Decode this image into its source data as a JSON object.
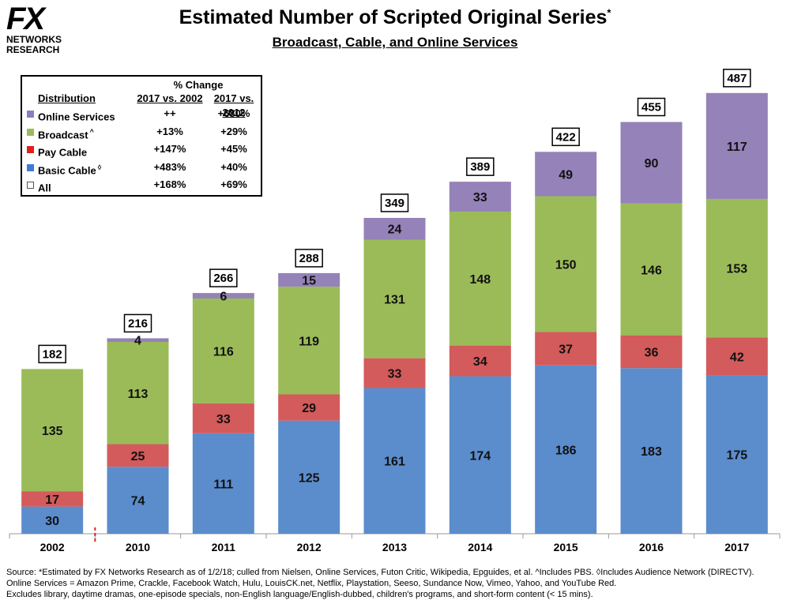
{
  "logo": {
    "line1": "FX",
    "line2": "NETWORKS",
    "line3": "RESEARCH"
  },
  "header": {
    "title": "Estimated Number of Scripted Original Series",
    "title_mark": "*",
    "subtitle": "Broadcast, Cable, and Online Services"
  },
  "legend": {
    "pct_header": "% Change",
    "col_distribution": "Distribution",
    "col1": "2017 vs. 2002",
    "col2": "2017 vs. 2012",
    "rows": [
      {
        "label": "Online Services",
        "mark": "",
        "c1": "++",
        "c2": "+680%",
        "color": "#8e7cc3"
      },
      {
        "label": "Broadcast",
        "mark": "^",
        "c1": "+13%",
        "c2": "+29%",
        "color": "#9bbb59"
      },
      {
        "label": "Pay Cable",
        "mark": "",
        "c1": "+147%",
        "c2": "+45%",
        "color": "#e0201b"
      },
      {
        "label": "Basic Cable",
        "mark": "◊",
        "c1": "+483%",
        "c2": "+40%",
        "color": "#3d7bd6"
      },
      {
        "label": "All",
        "mark": "",
        "c1": "+168%",
        "c2": "+69%",
        "color": "#ffffff"
      }
    ]
  },
  "chart_data": {
    "type": "bar",
    "stacked": true,
    "title": "Estimated Number of Scripted Original Series",
    "categories": [
      "2002",
      "2010",
      "2011",
      "2012",
      "2013",
      "2014",
      "2015",
      "2016",
      "2017"
    ],
    "series": [
      {
        "name": "Basic Cable",
        "color": "#5b8ccc",
        "values": [
          30,
          74,
          111,
          125,
          161,
          174,
          186,
          183,
          175
        ]
      },
      {
        "name": "Pay Cable",
        "color": "#d35b5b",
        "values": [
          17,
          25,
          33,
          29,
          33,
          34,
          37,
          36,
          42
        ]
      },
      {
        "name": "Broadcast",
        "color": "#9bbb59",
        "values": [
          135,
          113,
          116,
          119,
          131,
          148,
          150,
          146,
          153
        ]
      },
      {
        "name": "Online Services",
        "color": "#9582b8",
        "values": [
          0,
          4,
          6,
          15,
          24,
          33,
          49,
          90,
          117
        ]
      }
    ],
    "totals": [
      182,
      216,
      266,
      288,
      349,
      389,
      422,
      455,
      487
    ],
    "ylim": [
      0,
      520
    ],
    "xlabel": "",
    "ylabel": ""
  },
  "footer": {
    "line1": "Source:  *Estimated by FX Networks Research as of 1/2/18; culled from Nielsen, Online Services, Futon Critic, Wikipedia, Epguides, et al.  ^Includes PBS.  ◊Includes Audience Network (DIRECTV).",
    "line2": "Online Services = Amazon Prime, Crackle, Facebook Watch, Hulu, LouisCK.net, Netflix, Playstation, Seeso, Sundance Now, Vimeo, Yahoo, and YouTube Red.",
    "line3": "Excludes library, daytime dramas, one-episode specials, non-English language/English-dubbed, children's programs, and short-form content (< 15 mins)."
  }
}
